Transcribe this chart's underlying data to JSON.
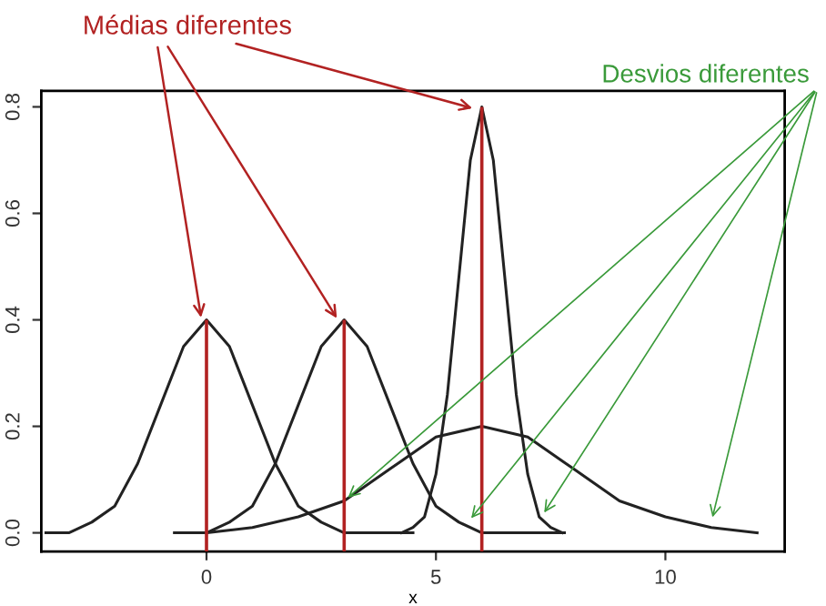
{
  "chart_data": {
    "type": "line",
    "xlabel": "x",
    "xlim": [
      -3.6,
      12.6
    ],
    "ylim": [
      -0.035,
      0.83
    ],
    "xticks": [
      0,
      5,
      10
    ],
    "yticks": [
      {
        "value": 0,
        "label": "0.0"
      },
      {
        "value": 0.2,
        "label": "0.2"
      },
      {
        "value": 0.4,
        "label": "0.4"
      },
      {
        "value": 0.6,
        "label": "0.6"
      },
      {
        "value": 0.8,
        "label": "0.8"
      }
    ],
    "grid": false,
    "marker": "none",
    "line_style": "solid",
    "series": [
      {
        "color": "#222222",
        "x": [
          -3.5,
          -3,
          -2.5,
          -2,
          -1.5,
          -1,
          -0.5,
          0,
          0.5,
          1,
          1.5,
          2,
          2.5,
          3,
          3.5,
          4.5
        ],
        "values": [
          0,
          0,
          0.02,
          0.05,
          0.13,
          0.24,
          0.35,
          0.4,
          0.35,
          0.24,
          0.13,
          0.05,
          0.02,
          0,
          0,
          0
        ]
      },
      {
        "color": "#222222",
        "x": [
          -0.7,
          0,
          0.5,
          1,
          1.5,
          2,
          2.5,
          3,
          3.5,
          4,
          4.5,
          5,
          5.5,
          6,
          6.5,
          7.8
        ],
        "values": [
          0,
          0,
          0.02,
          0.05,
          0.13,
          0.24,
          0.35,
          0.4,
          0.35,
          0.24,
          0.13,
          0.05,
          0.02,
          0,
          0,
          0
        ]
      },
      {
        "color": "#222222",
        "x": [
          4.25,
          4.5,
          4.75,
          5,
          5.25,
          5.5,
          5.75,
          6,
          6.25,
          6.5,
          6.75,
          7,
          7.25,
          7.5,
          7.75
        ],
        "values": [
          0,
          0.01,
          0.03,
          0.11,
          0.26,
          0.48,
          0.7,
          0.8,
          0.7,
          0.48,
          0.26,
          0.11,
          0.03,
          0.01,
          0
        ]
      },
      {
        "color": "#222222",
        "x": [
          0,
          1,
          2,
          3,
          4,
          5,
          6,
          7,
          8,
          9,
          10,
          11,
          12
        ],
        "values": [
          0,
          0.01,
          0.03,
          0.06,
          0.12,
          0.18,
          0.2,
          0.18,
          0.12,
          0.06,
          0.03,
          0.01,
          0
        ]
      }
    ],
    "ref_lines": [
      {
        "axis": "x",
        "value": 0,
        "color": "#b22222"
      },
      {
        "axis": "x",
        "value": 3,
        "color": "#b22222"
      },
      {
        "axis": "x",
        "value": 6,
        "color": "#b22222"
      }
    ],
    "annotations": [
      {
        "text": "Médias diferentes",
        "x": 0,
        "y": 0.4
      },
      {
        "text": "Desvios diferentes",
        "x": 3,
        "y": 0.06
      }
    ]
  }
}
